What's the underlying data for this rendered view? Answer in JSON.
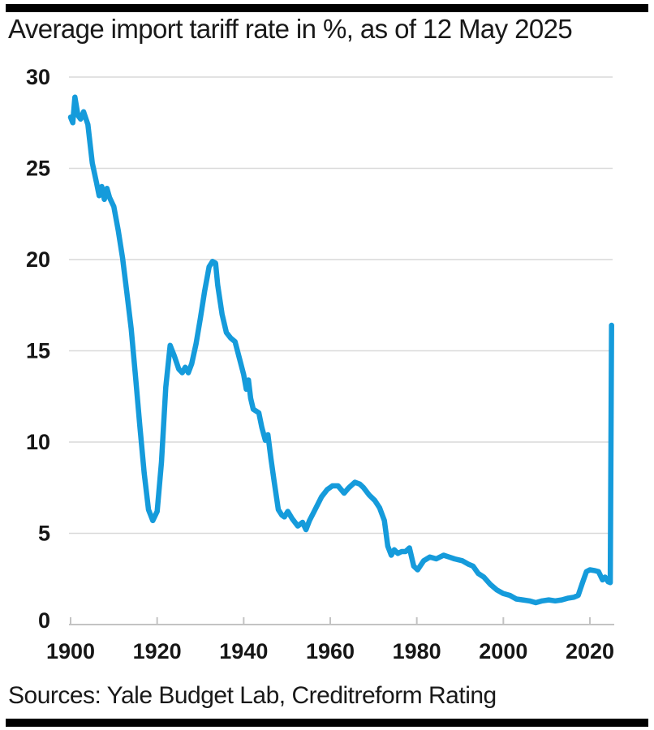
{
  "header": {
    "title": "Average import tariff rate in %, as of 12 May 2025"
  },
  "footer": {
    "sources": "Sources: Yale Budget Lab, Creditreform Rating"
  },
  "colors": {
    "line": "#159bdb",
    "grid": "#d9d9d9",
    "axis": "#c3c3c3",
    "text": "#161616",
    "divider_bar": "#000000"
  },
  "chart_data": {
    "type": "line",
    "title": "Average import tariff rate in %, as of 12 May 2025",
    "xlabel": "",
    "ylabel": "Average import tariff rate in %",
    "xlim": [
      1900,
      2026
    ],
    "ylim": [
      0,
      30
    ],
    "x_ticks": [
      1900,
      1920,
      1940,
      1960,
      1980,
      2000,
      2020
    ],
    "y_ticks": [
      0,
      5,
      10,
      15,
      20,
      25,
      30
    ],
    "grid": "horizontal",
    "legend": "none",
    "series": [
      {
        "name": "Average import tariff rate (%)",
        "points": [
          [
            1900,
            27.8
          ],
          [
            1900.5,
            27.5
          ],
          [
            1901,
            28.9
          ],
          [
            1901.7,
            27.9
          ],
          [
            1902.3,
            27.7
          ],
          [
            1903,
            28.1
          ],
          [
            1904,
            27.4
          ],
          [
            1905,
            25.3
          ],
          [
            1906,
            24.2
          ],
          [
            1906.6,
            23.5
          ],
          [
            1907.2,
            24.0
          ],
          [
            1907.8,
            23.3
          ],
          [
            1908.4,
            23.9
          ],
          [
            1909,
            23.4
          ],
          [
            1910,
            22.9
          ],
          [
            1911,
            21.6
          ],
          [
            1912,
            20.1
          ],
          [
            1913,
            18.2
          ],
          [
            1914,
            16.2
          ],
          [
            1915,
            13.6
          ],
          [
            1916,
            10.9
          ],
          [
            1917,
            8.3
          ],
          [
            1918,
            6.3
          ],
          [
            1919,
            5.7
          ],
          [
            1920,
            6.2
          ],
          [
            1921,
            8.9
          ],
          [
            1922,
            13.0
          ],
          [
            1923,
            15.3
          ],
          [
            1924,
            14.7
          ],
          [
            1925,
            14.0
          ],
          [
            1925.8,
            13.8
          ],
          [
            1926.5,
            14.1
          ],
          [
            1927.2,
            13.8
          ],
          [
            1928,
            14.3
          ],
          [
            1929,
            15.4
          ],
          [
            1930,
            16.8
          ],
          [
            1931,
            18.3
          ],
          [
            1932,
            19.6
          ],
          [
            1932.8,
            19.9
          ],
          [
            1933.5,
            19.8
          ],
          [
            1934,
            18.6
          ],
          [
            1935,
            17.0
          ],
          [
            1936,
            16.0
          ],
          [
            1937,
            15.7
          ],
          [
            1938,
            15.5
          ],
          [
            1939,
            14.6
          ],
          [
            1940,
            13.7
          ],
          [
            1940.6,
            12.9
          ],
          [
            1941.1,
            13.4
          ],
          [
            1941.6,
            12.4
          ],
          [
            1942.2,
            11.8
          ],
          [
            1943.5,
            11.6
          ],
          [
            1944.2,
            10.8
          ],
          [
            1945,
            10.1
          ],
          [
            1945.6,
            10.4
          ],
          [
            1946.3,
            9.1
          ],
          [
            1947,
            7.9
          ],
          [
            1948,
            6.3
          ],
          [
            1948.8,
            6.0
          ],
          [
            1949.4,
            5.9
          ],
          [
            1950.2,
            6.2
          ],
          [
            1951.2,
            5.8
          ],
          [
            1952.5,
            5.4
          ],
          [
            1953.6,
            5.6
          ],
          [
            1954.4,
            5.2
          ],
          [
            1955.2,
            5.7
          ],
          [
            1956.5,
            6.3
          ],
          [
            1958,
            7.0
          ],
          [
            1959.3,
            7.4
          ],
          [
            1960.5,
            7.6
          ],
          [
            1961.8,
            7.6
          ],
          [
            1963.2,
            7.2
          ],
          [
            1964.3,
            7.5
          ],
          [
            1965.7,
            7.8
          ],
          [
            1966.8,
            7.7
          ],
          [
            1967.7,
            7.5
          ],
          [
            1969,
            7.1
          ],
          [
            1970.3,
            6.8
          ],
          [
            1971.4,
            6.4
          ],
          [
            1972.5,
            5.7
          ],
          [
            1973.3,
            4.3
          ],
          [
            1974.1,
            3.8
          ],
          [
            1974.8,
            4.1
          ],
          [
            1975.6,
            3.9
          ],
          [
            1976.5,
            4.0
          ],
          [
            1977.4,
            4.0
          ],
          [
            1978.3,
            4.2
          ],
          [
            1979.3,
            3.2
          ],
          [
            1980.2,
            3.0
          ],
          [
            1981.6,
            3.5
          ],
          [
            1983,
            3.7
          ],
          [
            1984.5,
            3.6
          ],
          [
            1986.2,
            3.8
          ],
          [
            1987.5,
            3.7
          ],
          [
            1988.7,
            3.6
          ],
          [
            1990.5,
            3.5
          ],
          [
            1992,
            3.3
          ],
          [
            1993,
            3.2
          ],
          [
            1994.2,
            2.8
          ],
          [
            1995.5,
            2.6
          ],
          [
            1997,
            2.2
          ],
          [
            1998.5,
            1.9
          ],
          [
            2000,
            1.7
          ],
          [
            2001.5,
            1.6
          ],
          [
            2003,
            1.4
          ],
          [
            2004.5,
            1.35
          ],
          [
            2006,
            1.3
          ],
          [
            2007.5,
            1.2
          ],
          [
            2009,
            1.3
          ],
          [
            2010.5,
            1.35
          ],
          [
            2012,
            1.3
          ],
          [
            2013.5,
            1.35
          ],
          [
            2015,
            1.45
          ],
          [
            2016.3,
            1.5
          ],
          [
            2017.3,
            1.6
          ],
          [
            2018.3,
            2.3
          ],
          [
            2019.2,
            2.9
          ],
          [
            2020,
            3.0
          ],
          [
            2021.2,
            2.95
          ],
          [
            2022,
            2.9
          ],
          [
            2022.9,
            2.45
          ],
          [
            2023.5,
            2.6
          ],
          [
            2024.2,
            2.35
          ],
          [
            2024.7,
            2.3
          ],
          [
            2025,
            16.4
          ]
        ]
      }
    ]
  }
}
